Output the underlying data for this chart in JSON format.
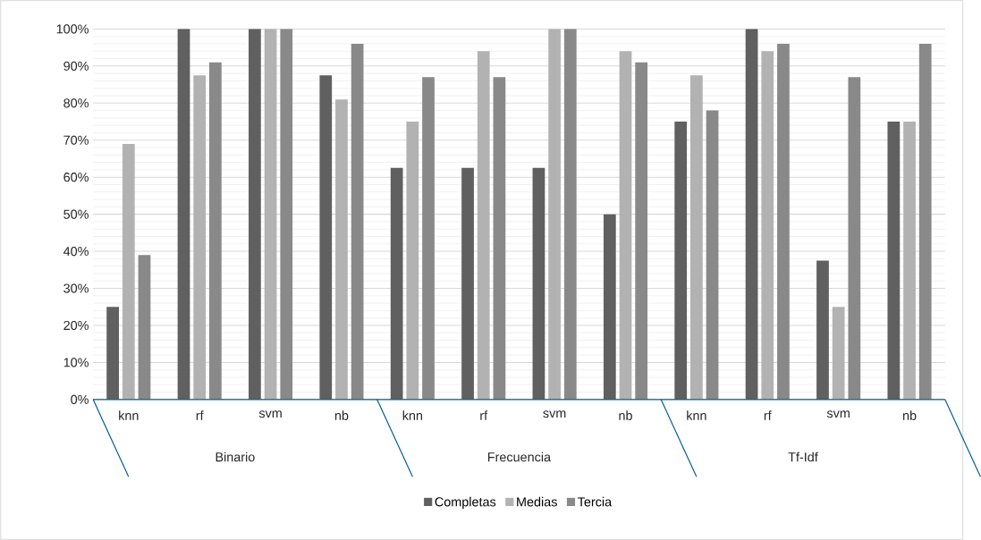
{
  "chart_data": {
    "type": "bar",
    "categories": [
      "knn",
      "rf",
      "svm",
      "nb",
      "knn",
      "rf",
      "svm",
      "nb",
      "knn",
      "rf",
      "svm",
      "nb"
    ],
    "annotations": [
      "Binario",
      "Frecuencia",
      "Tf-Idf"
    ],
    "series": [
      {
        "name": "Completas",
        "color": "#606060",
        "values": [
          25,
          100,
          100,
          87.5,
          62.5,
          62.5,
          62.5,
          50,
          75,
          100,
          37.5,
          75
        ]
      },
      {
        "name": "Medias",
        "color": "#b2b2b2",
        "values": [
          69,
          87.5,
          100,
          81,
          75,
          94,
          100,
          94,
          87.5,
          94,
          25,
          75
        ]
      },
      {
        "name": "Tercia",
        "color": "#898989",
        "values": [
          39,
          91,
          100,
          96,
          87,
          87,
          100,
          91,
          78,
          96,
          87,
          96
        ]
      }
    ],
    "ylim": [
      0,
      100
    ],
    "yticks": [
      {
        "value": 0,
        "label": "0%"
      },
      {
        "value": 10,
        "label": "10%"
      },
      {
        "value": 20,
        "label": "20%"
      },
      {
        "value": 30,
        "label": "30%"
      },
      {
        "value": 40,
        "label": "40%"
      },
      {
        "value": 50,
        "label": "50%"
      },
      {
        "value": 60,
        "label": "60%"
      },
      {
        "value": 70,
        "label": "70%"
      },
      {
        "value": 80,
        "label": "80%"
      },
      {
        "value": 90,
        "label": "90%"
      },
      {
        "value": 100,
        "label": "100%"
      }
    ],
    "grid": "y",
    "legend": "bottom"
  }
}
